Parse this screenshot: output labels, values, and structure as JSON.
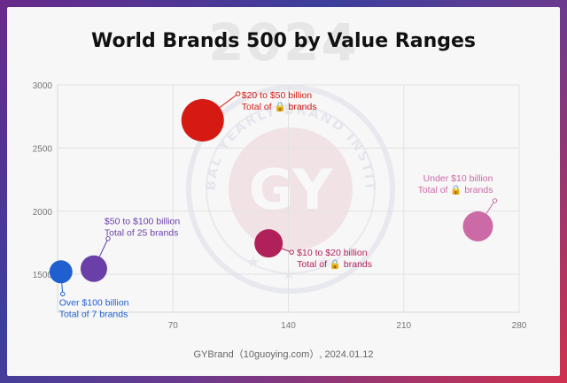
{
  "watermark": {
    "year": "2024",
    "seal_text": "GLOBAL YEARLY BRAND INSTITUTE",
    "seal_letters": "GY"
  },
  "title": "World Brands 500 by Value Ranges",
  "footer": "GYBrand（10guoying.com）, 2024.01.12",
  "chart_data": {
    "type": "bubble",
    "title": "World Brands 500 by Value Ranges",
    "xlabel": "",
    "ylabel": "",
    "xlim": [
      0,
      280
    ],
    "ylim": [
      1200,
      3000
    ],
    "xticks": [
      70,
      140,
      210,
      280
    ],
    "yticks": [
      1500,
      2000,
      2500,
      3000
    ],
    "grid": true,
    "points": [
      {
        "x": 2,
        "y": 1520,
        "size": 7,
        "color": "#1f5fd0",
        "label_lines": [
          "Over $100 billion",
          "Total of 7 brands"
        ],
        "label_pos": "below-right"
      },
      {
        "x": 22,
        "y": 1545,
        "size": 25,
        "color": "#6a3fa8",
        "label_lines": [
          "$50 to $100 billion",
          "Total of 25 brands"
        ],
        "label_pos": "upper-right"
      },
      {
        "x": 88,
        "y": 2720,
        "size": 999,
        "color": "#d41a12",
        "label_lines": [
          "$20 to $50 billion",
          "Total of 🔒 brands"
        ],
        "label_pos": "upper-right"
      },
      {
        "x": 128,
        "y": 1745,
        "size": 999,
        "color": "#b0215a",
        "label_lines": [
          "$10 to $20 billion",
          "Total of 🔒 brands"
        ],
        "label_pos": "lower-right"
      },
      {
        "x": 255,
        "y": 1880,
        "size": 999,
        "color": "#cc6aa6",
        "label_lines": [
          "Under $10 billion",
          "Total of 🔒 brands"
        ],
        "label_pos": "upper-left"
      }
    ]
  }
}
